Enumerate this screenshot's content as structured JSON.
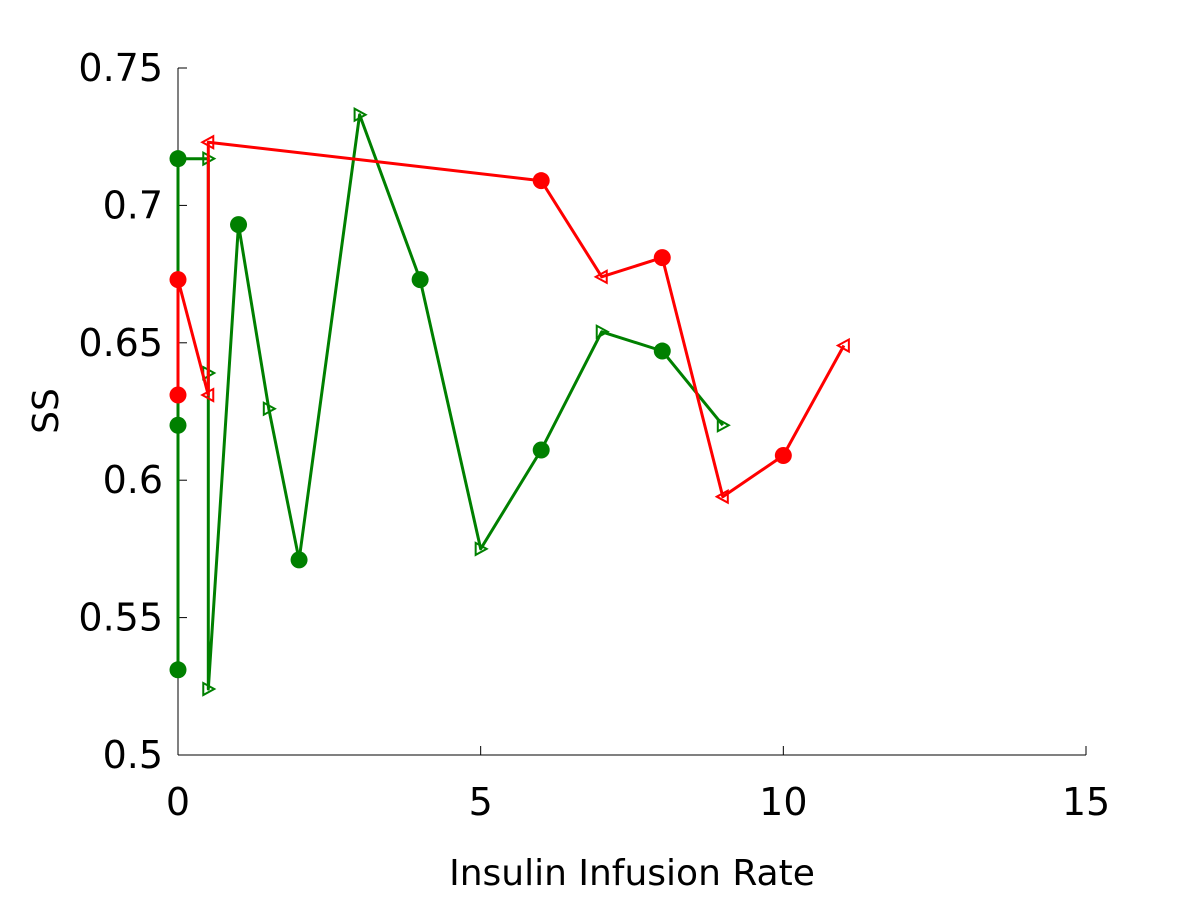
{
  "chart_data": {
    "type": "line",
    "title": "",
    "xlabel": "Insulin Infusion Rate",
    "ylabel": "SS",
    "xlim": [
      0,
      15
    ],
    "ylim": [
      0.5,
      0.75
    ],
    "xticks": [
      0,
      5,
      10,
      15
    ],
    "xtick_labels": [
      "0",
      "5",
      "10",
      "15"
    ],
    "yticks": [
      0.5,
      0.55,
      0.6,
      0.65,
      0.7,
      0.75
    ],
    "ytick_labels": [
      "0.5",
      "0.55",
      "0.6",
      "0.65",
      "0.7",
      "0.75"
    ],
    "grid": false,
    "legend": "none",
    "series": [
      {
        "color": "#008000",
        "points": [
          {
            "x": 0,
            "y": 0.531,
            "marker": "circle"
          },
          {
            "x": 0,
            "y": 0.62,
            "marker": "circle"
          },
          {
            "x": 0,
            "y": 0.717,
            "marker": "circle"
          },
          {
            "x": 0.5,
            "y": 0.717,
            "marker": "triangle-right"
          },
          {
            "x": 0.5,
            "y": 0.639,
            "marker": "triangle-right"
          },
          {
            "x": 0.5,
            "y": 0.524,
            "marker": "triangle-right"
          },
          {
            "x": 1,
            "y": 0.693,
            "marker": "circle"
          },
          {
            "x": 1.5,
            "y": 0.626,
            "marker": "triangle-right"
          },
          {
            "x": 2,
            "y": 0.571,
            "marker": "circle"
          },
          {
            "x": 3,
            "y": 0.733,
            "marker": "triangle-right"
          },
          {
            "x": 4,
            "y": 0.673,
            "marker": "circle"
          },
          {
            "x": 5,
            "y": 0.575,
            "marker": "triangle-right"
          },
          {
            "x": 6,
            "y": 0.611,
            "marker": "circle"
          },
          {
            "x": 7,
            "y": 0.654,
            "marker": "triangle-right"
          },
          {
            "x": 8,
            "y": 0.647,
            "marker": "circle"
          },
          {
            "x": 9,
            "y": 0.62,
            "marker": "triangle-right"
          }
        ]
      },
      {
        "color": "#ff0000",
        "points": [
          {
            "x": 0,
            "y": 0.631,
            "marker": "circle"
          },
          {
            "x": 0,
            "y": 0.673,
            "marker": "circle"
          },
          {
            "x": 0.5,
            "y": 0.631,
            "marker": "triangle-left"
          },
          {
            "x": 0.5,
            "y": 0.723,
            "marker": "triangle-left"
          },
          {
            "x": 6,
            "y": 0.709,
            "marker": "circle"
          },
          {
            "x": 7,
            "y": 0.674,
            "marker": "triangle-left"
          },
          {
            "x": 8,
            "y": 0.681,
            "marker": "circle"
          },
          {
            "x": 9,
            "y": 0.594,
            "marker": "triangle-left"
          },
          {
            "x": 10,
            "y": 0.609,
            "marker": "circle"
          },
          {
            "x": 11,
            "y": 0.649,
            "marker": "triangle-left"
          }
        ]
      }
    ]
  }
}
